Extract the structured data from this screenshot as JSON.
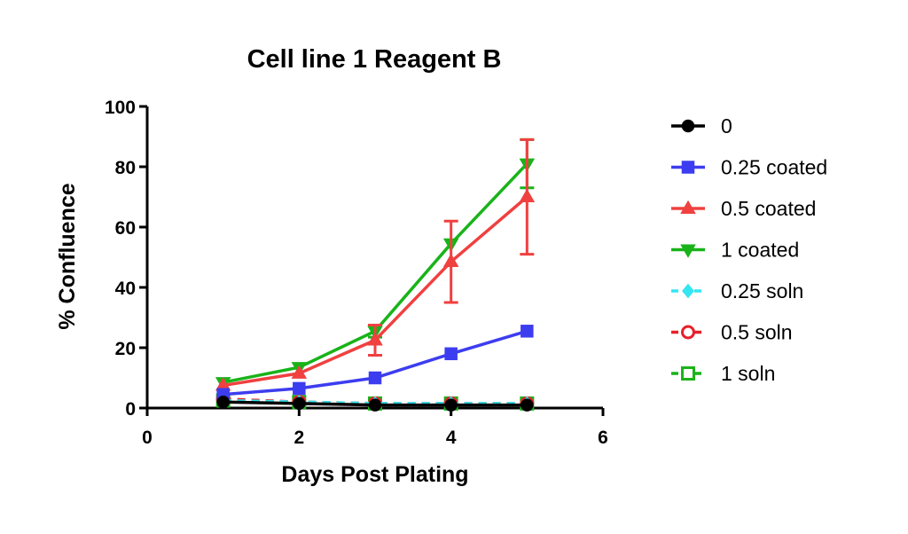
{
  "chart_data": {
    "type": "line",
    "title": "Cell line 1 Reagent B",
    "xlabel": "Days Post Plating",
    "ylabel": "% Confluence",
    "xlim": [
      0,
      6
    ],
    "ylim": [
      0,
      100
    ],
    "x_ticks": [
      0,
      2,
      4,
      6
    ],
    "y_ticks": [
      0,
      20,
      40,
      60,
      80,
      100
    ],
    "grid": false,
    "legend_position": "right",
    "x": [
      1,
      2,
      3,
      4,
      5
    ],
    "series": [
      {
        "name": "0",
        "values": [
          2,
          1.5,
          1,
          1,
          1
        ],
        "error": [
          0,
          0,
          0,
          0,
          0
        ],
        "color": "#000000",
        "marker": "circle",
        "fill": "filled",
        "line": "solid"
      },
      {
        "name": "0.25 coated",
        "values": [
          4.5,
          6.5,
          10,
          18,
          25.5
        ],
        "error": [
          0,
          0,
          0,
          0,
          0
        ],
        "color": "#3d3df0",
        "marker": "square",
        "fill": "filled",
        "line": "solid"
      },
      {
        "name": "0.5 coated",
        "values": [
          7.5,
          11.5,
          22.5,
          48.5,
          70
        ],
        "error": [
          0,
          0,
          5,
          13.5,
          19
        ],
        "color": "#f04040",
        "marker": "triangle-up",
        "fill": "filled",
        "line": "solid"
      },
      {
        "name": "1 coated",
        "values": [
          8.5,
          13.5,
          25.5,
          54.5,
          81
        ],
        "error": [
          0,
          0,
          2,
          0,
          8
        ],
        "color": "#19b319",
        "marker": "triangle-down",
        "fill": "filled",
        "line": "solid"
      },
      {
        "name": "0.25 soln",
        "values": [
          2.5,
          2,
          1.5,
          1.5,
          1.5
        ],
        "error": [
          0,
          0,
          0,
          0,
          0
        ],
        "color": "#33e6f2",
        "marker": "diamond",
        "fill": "filled",
        "line": "dashed"
      },
      {
        "name": "0.5 soln",
        "values": [
          3,
          2,
          1.5,
          1.5,
          1.5
        ],
        "error": [
          0,
          0,
          0,
          0,
          0
        ],
        "color": "#e8202a",
        "marker": "circle",
        "fill": "open",
        "line": "dashed"
      },
      {
        "name": "1 soln",
        "values": [
          2.5,
          2,
          1.5,
          1.5,
          1.5
        ],
        "error": [
          0,
          0,
          0,
          0,
          0
        ],
        "color": "#19b319",
        "marker": "square",
        "fill": "open",
        "line": "dashed"
      }
    ]
  }
}
